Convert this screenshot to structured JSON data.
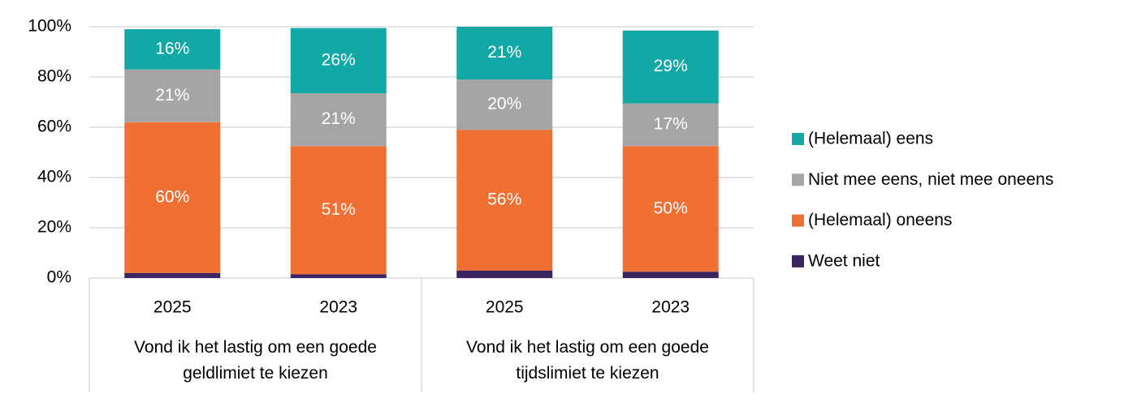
{
  "chart_data": {
    "type": "stacked_bar",
    "categories": [
      "2025",
      "2023",
      "2025",
      "2023"
    ],
    "groups": [
      "Vond ik het lastig om een goede geldlimiet te kiezen",
      "Vond ik het lastig om een goede tijdslimiet te kiezen"
    ],
    "series": [
      {
        "name": "Weet niet",
        "color": "#3b2460",
        "values": [
          2,
          1.5,
          3,
          2.5
        ]
      },
      {
        "name": "(Helemaal) oneens",
        "color": "#f07033",
        "values": [
          60,
          51,
          56,
          50
        ],
        "value_labels": [
          "60%",
          "51%",
          "56%",
          "50%"
        ]
      },
      {
        "name": "Niet mee eens, niet mee oneens",
        "color": "#a5a5a5",
        "values": [
          21,
          21,
          20,
          17
        ],
        "value_labels": [
          "21%",
          "21%",
          "20%",
          "17%"
        ]
      },
      {
        "name": "(Helemaal) eens",
        "color": "#12a8a6",
        "values": [
          16,
          26,
          21,
          29
        ],
        "value_labels": [
          "16%",
          "26%",
          "21%",
          "29%"
        ]
      }
    ],
    "ylim": [
      0,
      100
    ],
    "yticks": [
      {
        "value": 0,
        "label": "0%"
      },
      {
        "value": 20,
        "label": "20%"
      },
      {
        "value": 40,
        "label": "40%"
      },
      {
        "value": 60,
        "label": "60%"
      },
      {
        "value": 80,
        "label": "80%"
      },
      {
        "value": 100,
        "label": "100%"
      }
    ],
    "grid": true,
    "legend": "right"
  }
}
